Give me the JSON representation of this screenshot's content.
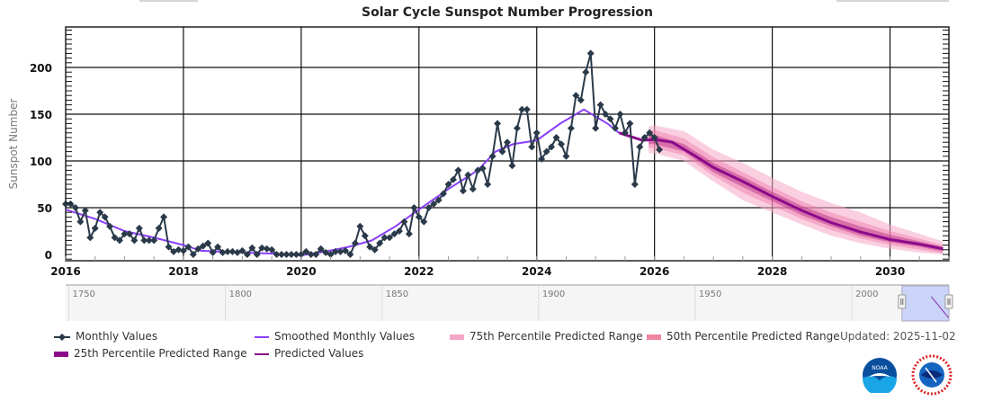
{
  "chart_data": {
    "type": "line",
    "title": "Solar Cycle Sunspot Number Progression",
    "xlabel": "",
    "ylabel": "Sunspot Number",
    "xlim": [
      2016,
      2031
    ],
    "ylim": [
      -5,
      245
    ],
    "x_ticks": [
      "2016",
      "2018",
      "2020",
      "2022",
      "2024",
      "2026",
      "2028",
      "2030"
    ],
    "y_ticks": [
      "0",
      "50",
      "100",
      "150",
      "200"
    ],
    "grid": true,
    "legend_position": "bottom",
    "colors": {
      "monthly": "#2b3a4a",
      "smoothed": "#8a3ffc",
      "predicted": "#8b0a8b",
      "p75": "#f7b8d0",
      "p50": "#f08cb4",
      "p25": "#b0207a"
    },
    "series": [
      {
        "name": "Monthly Values",
        "start": 2016.0,
        "step_years": 0.08333,
        "values": [
          54,
          54,
          50,
          35,
          47,
          18,
          28,
          45,
          40,
          30,
          18,
          15,
          22,
          22,
          15,
          28,
          15,
          15,
          15,
          28,
          40,
          8,
          3,
          5,
          4,
          8,
          0,
          6,
          9,
          12,
          2,
          8,
          2,
          3,
          3,
          2,
          4,
          0,
          7,
          0,
          7,
          6,
          5,
          0,
          0,
          0,
          0,
          0,
          0,
          3,
          0,
          0,
          6,
          2,
          0,
          3,
          3,
          4,
          0,
          12,
          30,
          20,
          8,
          5,
          12,
          18,
          18,
          22,
          25,
          35,
          22,
          50,
          40,
          35,
          50,
          54,
          58,
          65,
          75,
          80,
          90,
          68,
          85,
          70,
          90,
          92,
          75,
          105,
          140,
          110,
          120,
          95,
          135,
          155,
          155,
          115,
          130,
          102,
          110,
          115,
          125,
          118,
          105,
          135,
          170,
          165,
          195,
          215,
          135,
          160,
          150,
          145,
          135,
          150,
          130,
          140,
          75,
          115,
          125,
          130,
          125,
          112
        ],
        "marker": "diamond"
      },
      {
        "name": "Smoothed Monthly Values",
        "points": [
          [
            2016.0,
            48
          ],
          [
            2016.5,
            38
          ],
          [
            2017.0,
            25
          ],
          [
            2017.5,
            18
          ],
          [
            2018.0,
            10
          ],
          [
            2018.3,
            4
          ],
          [
            2019.0,
            2
          ],
          [
            2019.5,
            1
          ],
          [
            2020.0,
            -1
          ],
          [
            2020.4,
            3
          ],
          [
            2020.8,
            8
          ],
          [
            2021.2,
            15
          ],
          [
            2021.6,
            30
          ],
          [
            2022.0,
            48
          ],
          [
            2022.5,
            70
          ],
          [
            2023.0,
            90
          ],
          [
            2023.3,
            110
          ],
          [
            2023.6,
            118
          ],
          [
            2024.0,
            122
          ],
          [
            2024.4,
            140
          ],
          [
            2024.8,
            155
          ],
          [
            2025.2,
            140
          ],
          [
            2025.4,
            130
          ]
        ]
      },
      {
        "name": "Predicted Values",
        "points": [
          [
            2025.4,
            130
          ],
          [
            2025.8,
            122
          ],
          [
            2026.0,
            123
          ],
          [
            2026.3,
            120
          ],
          [
            2026.7,
            105
          ],
          [
            2027.0,
            93
          ],
          [
            2027.5,
            78
          ],
          [
            2028.0,
            62
          ],
          [
            2028.5,
            47
          ],
          [
            2029.0,
            34
          ],
          [
            2029.5,
            24
          ],
          [
            2030.0,
            16
          ],
          [
            2030.5,
            11
          ],
          [
            2030.9,
            6
          ]
        ]
      },
      {
        "name": "75th Percentile Predicted Range",
        "x": [
          2025.9,
          2026.0,
          2026.5,
          2027.0,
          2027.5,
          2028.0,
          2028.5,
          2029.0,
          2029.5,
          2030.0,
          2030.5,
          2030.9
        ],
        "upper": [
          137,
          138,
          132,
          112,
          98,
          82,
          67,
          55,
          45,
          32,
          22,
          14
        ],
        "lower": [
          108,
          108,
          100,
          78,
          58,
          45,
          32,
          20,
          12,
          6,
          2,
          0
        ]
      },
      {
        "name": "50th Percentile Predicted Range",
        "x": [
          2025.9,
          2026.0,
          2026.5,
          2027.0,
          2027.5,
          2028.0,
          2028.5,
          2029.0,
          2029.5,
          2030.0,
          2030.5,
          2030.9
        ],
        "upper": [
          132,
          133,
          124,
          104,
          88,
          72,
          57,
          45,
          35,
          25,
          17,
          10
        ],
        "lower": [
          114,
          114,
          106,
          84,
          66,
          52,
          38,
          26,
          17,
          10,
          5,
          1
        ]
      },
      {
        "name": "25th Percentile Predicted Range",
        "x": [
          2025.9,
          2026.0,
          2026.5,
          2027.0,
          2027.5,
          2028.0,
          2028.5,
          2029.0,
          2029.5,
          2030.0,
          2030.5,
          2030.9
        ],
        "upper": [
          128,
          128,
          118,
          98,
          83,
          67,
          52,
          40,
          30,
          21,
          14,
          8
        ],
        "lower": [
          118,
          118,
          110,
          88,
          72,
          57,
          42,
          30,
          20,
          13,
          8,
          3
        ]
      }
    ],
    "navigator": {
      "x_labels": [
        "1750",
        "1800",
        "1850",
        "1900",
        "1950",
        "2000"
      ],
      "range": [
        1749,
        2031
      ],
      "selected": [
        2016,
        2031
      ]
    }
  },
  "legend": {
    "monthly": "Monthly Values",
    "smoothed": "Smoothed Monthly Values",
    "p75": "75th Percentile Predicted Range",
    "p50": "50th Percentile Predicted Range",
    "p25": "25th Percentile Predicted Range",
    "predicted": "Predicted Values"
  },
  "updated": "Updated: 2025-11-02",
  "logos": {
    "noaa": "NOAA",
    "nws": "NATIONAL WEATHER SERVICE"
  }
}
